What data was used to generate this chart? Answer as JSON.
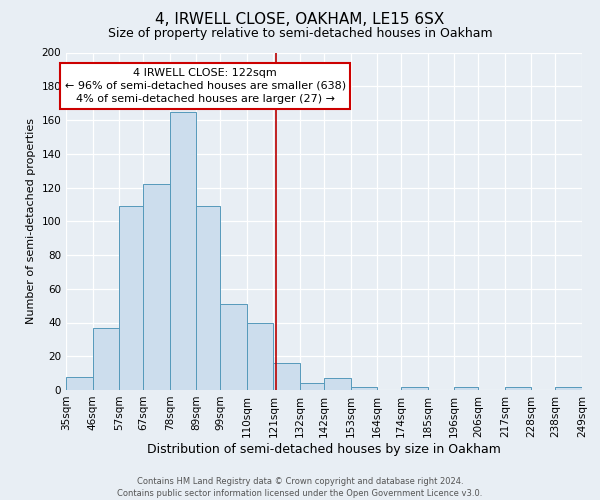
{
  "title": "4, IRWELL CLOSE, OAKHAM, LE15 6SX",
  "subtitle": "Size of property relative to semi-detached houses in Oakham",
  "xlabel": "Distribution of semi-detached houses by size in Oakham",
  "ylabel": "Number of semi-detached properties",
  "bin_edges": [
    35,
    46,
    57,
    67,
    78,
    89,
    99,
    110,
    121,
    132,
    142,
    153,
    164,
    174,
    185,
    196,
    206,
    217,
    228,
    238,
    249
  ],
  "bin_labels": [
    "35sqm",
    "46sqm",
    "57sqm",
    "67sqm",
    "78sqm",
    "89sqm",
    "99sqm",
    "110sqm",
    "121sqm",
    "132sqm",
    "142sqm",
    "153sqm",
    "164sqm",
    "174sqm",
    "185sqm",
    "196sqm",
    "206sqm",
    "217sqm",
    "228sqm",
    "238sqm",
    "249sqm"
  ],
  "counts": [
    8,
    37,
    109,
    122,
    165,
    109,
    51,
    40,
    16,
    4,
    7,
    2,
    0,
    2,
    0,
    2,
    0,
    2,
    0,
    2
  ],
  "bar_color": "#ccdded",
  "bar_edge_color": "#5599bb",
  "vline_x": 122,
  "vline_color": "#bb0000",
  "ylim": [
    0,
    200
  ],
  "yticks": [
    0,
    20,
    40,
    60,
    80,
    100,
    120,
    140,
    160,
    180,
    200
  ],
  "annotation_title": "4 IRWELL CLOSE: 122sqm",
  "annotation_line1": "← 96% of semi-detached houses are smaller (638)",
  "annotation_line2": "4% of semi-detached houses are larger (27) →",
  "annotation_box_color": "#ffffff",
  "annotation_box_edge": "#cc0000",
  "footer_line1": "Contains HM Land Registry data © Crown copyright and database right 2024.",
  "footer_line2": "Contains public sector information licensed under the Open Government Licence v3.0.",
  "fig_bg_color": "#e8eef4",
  "plot_bg_color": "#e8eef4",
  "grid_color": "#ffffff",
  "title_fontsize": 11,
  "subtitle_fontsize": 9,
  "xlabel_fontsize": 9,
  "ylabel_fontsize": 8,
  "tick_fontsize": 7.5,
  "annotation_fontsize": 8,
  "footer_fontsize": 6
}
